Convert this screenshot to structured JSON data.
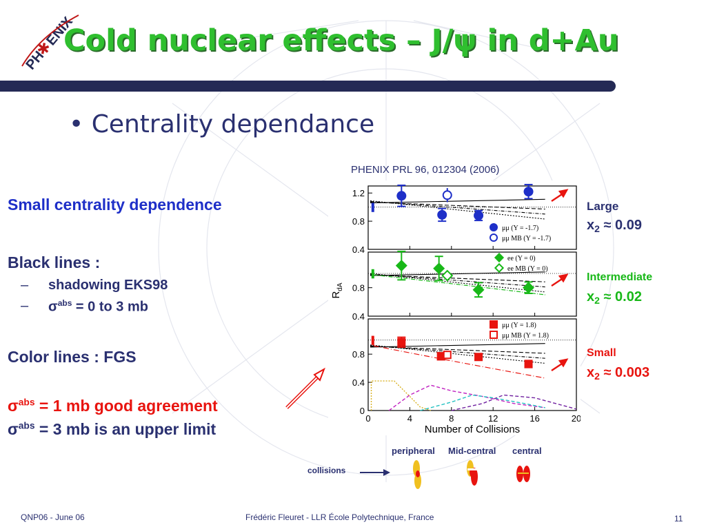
{
  "logo": {
    "text": "PH✱ENIX"
  },
  "slide": {
    "title": "Cold nuclear effects – J/ψ in d+Au",
    "bullet": "Centrality dependance",
    "reference": "PHENIX PRL 96, 012304 (2006)"
  },
  "left": {
    "small_dependence": "Small centrality dependence",
    "black_lines": "Black lines :",
    "shadowing": "shadowing EKS98",
    "sigma_sym": "σ",
    "abs": "abs",
    "sigma_range": " = 0 to 3 mb",
    "color_lines": "Color lines : FGS",
    "good_agreement": " = 1 mb good agreement",
    "upper_limit": " = 3 mb is an upper limit"
  },
  "labels": {
    "large": "Large",
    "large_x": "≈ 0.09",
    "intermediate": "Intermediate",
    "intermediate_x": "≈ 0.02",
    "small": "Small",
    "small_x": "≈ 0.003",
    "x_symbol": "x",
    "x_sub": "2"
  },
  "centrality": {
    "peripheral": "peripheral",
    "mid_central": "Mid-central",
    "central": "central",
    "collisions": "collisions"
  },
  "footer": {
    "left": "QNP06 - June 06",
    "center": "Frédéric Fleuret - LLR École Polytechnique, France",
    "page": "11"
  },
  "colors": {
    "title": "#2fbf2f",
    "navy": "#2a3070",
    "blue": "#1e2fc8",
    "green": "#18b818",
    "red": "#e8140f",
    "bar": "#242a55"
  },
  "chart_data": {
    "type": "scatter",
    "xlabel": "Number of Collisions",
    "ylabel": "RdA",
    "xlim": [
      0,
      20
    ],
    "x_ticks": [
      "0",
      "4",
      "8",
      "12",
      "16",
      "20"
    ],
    "panels": [
      {
        "ylim": [
          0.4,
          1.3
        ],
        "y_ticks": [
          "0.4",
          "0.8",
          "1.2"
        ],
        "color": "#1e2fc8",
        "legend": [
          "μμ (Y = -1.7)",
          "μμ MB (Y = -1.7)"
        ],
        "points": [
          {
            "x": 3.2,
            "y": 1.16,
            "err": 0.15
          },
          {
            "x": 7.1,
            "y": 0.89,
            "err": 0.09
          },
          {
            "x": 10.6,
            "y": 0.88,
            "err": 0.07
          },
          {
            "x": 15.4,
            "y": 1.22,
            "err": 0.1
          }
        ],
        "mb_point": {
          "x": 7.6,
          "y": 1.17,
          "err": 0.1
        }
      },
      {
        "ylim": [
          0.4,
          1.3
        ],
        "y_ticks": [
          "0.4",
          "0.8"
        ],
        "color": "#18b818",
        "legend": [
          "ee (Y = 0)",
          "ee MB (Y = 0)"
        ],
        "points": [
          {
            "x": 3.2,
            "y": 1.11,
            "err": 0.2
          },
          {
            "x": 6.8,
            "y": 1.07,
            "err": 0.17
          },
          {
            "x": 10.6,
            "y": 0.77,
            "err": 0.1
          },
          {
            "x": 15.4,
            "y": 0.8,
            "err": 0.08
          }
        ],
        "mb_point": {
          "x": 7.6,
          "y": 0.97,
          "err": 0.07
        }
      },
      {
        "ylim": [
          0.0,
          1.3
        ],
        "y_ticks": [
          "0",
          "0.4",
          "0.8"
        ],
        "color": "#e8140f",
        "legend": [
          "μμ (Y = 1.8)",
          "μμ MB (Y = 1.8)"
        ],
        "points": [
          {
            "x": 3.2,
            "y": 0.97,
            "err": 0.07
          },
          {
            "x": 7.0,
            "y": 0.77,
            "err": 0.05
          },
          {
            "x": 10.6,
            "y": 0.76,
            "err": 0.04
          },
          {
            "x": 15.4,
            "y": 0.66,
            "err": 0.05
          }
        ],
        "mb_point": {
          "x": 7.6,
          "y": 0.79,
          "err": 0.05
        }
      }
    ]
  }
}
